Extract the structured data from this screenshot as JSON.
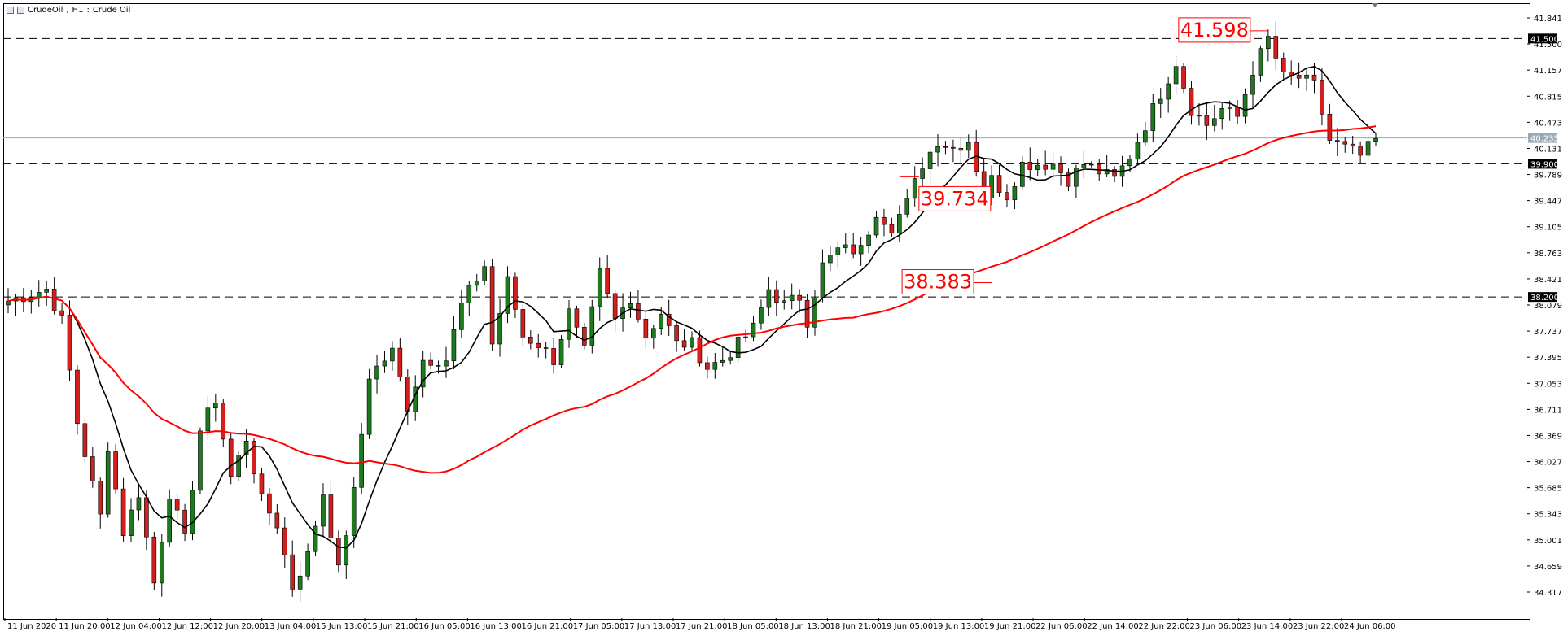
{
  "window": {
    "symbol": "CrudeOil",
    "timeframe": "H1",
    "description": "Crude Oil",
    "title_separator": ",",
    "title_colon": ":"
  },
  "colors": {
    "bull": "#1f7a1f",
    "bear": "#d41f1f",
    "ma_fast": "#000000",
    "ma_slow": "#ff0000",
    "annotation": "#ff0000",
    "level_line": "#000000",
    "current_price_line": "#9aaab8"
  },
  "chart_data": {
    "type": "candlestick",
    "ylim": [
      34.1,
      41.95
    ],
    "y_ticks": [
      "41.841",
      "41.500",
      "41.157",
      "40.815",
      "40.473",
      "40.131",
      "39.789",
      "39.447",
      "39.105",
      "38.763",
      "38.421",
      "38.079",
      "37.737",
      "37.395",
      "37.053",
      "36.711",
      "36.369",
      "36.027",
      "35.685",
      "35.343",
      "35.001",
      "34.659",
      "34.317"
    ],
    "x_labels": [
      "11 Jun 2020",
      "11 Jun 20:00",
      "12 Jun 04:00",
      "12 Jun 12:00",
      "12 Jun 20:00",
      "13 Jun 04:00",
      "15 Jun 13:00",
      "15 Jun 21:00",
      "16 Jun 05:00",
      "16 Jun 13:00",
      "16 Jun 21:00",
      "17 Jun 05:00",
      "17 Jun 13:00",
      "17 Jun 21:00",
      "18 Jun 05:00",
      "18 Jun 13:00",
      "18 Jun 21:00",
      "19 Jun 05:00",
      "19 Jun 13:00",
      "19 Jun 21:00",
      "22 Jun 06:00",
      "22 Jun 14:00",
      "22 Jun 22:00",
      "23 Jun 06:00",
      "23 Jun 14:00",
      "23 Jun 22:00",
      "24 Jun 06:00"
    ],
    "horizontal_levels": [
      {
        "value": 41.5,
        "label": "41.500"
      },
      {
        "value": 39.9,
        "label": "39.900"
      },
      {
        "value": 38.2,
        "label": "38.200"
      }
    ],
    "current_price": {
      "value": 40.23,
      "label": "40.235"
    },
    "annotations": [
      {
        "text": "41.598",
        "value": 41.598
      },
      {
        "text": "39.734",
        "value": 39.734
      },
      {
        "text": "38.383",
        "value": 38.383
      }
    ],
    "waypoints": [
      [
        0,
        38.15
      ],
      [
        5,
        38.3
      ],
      [
        7,
        37.9
      ],
      [
        9,
        36.6
      ],
      [
        12,
        35.4
      ],
      [
        13,
        36.3
      ],
      [
        15,
        35.2
      ],
      [
        17,
        35.7
      ],
      [
        19,
        34.55
      ],
      [
        21,
        35.7
      ],
      [
        23,
        35.1
      ],
      [
        25,
        36.5
      ],
      [
        27,
        36.9
      ],
      [
        29,
        35.9
      ],
      [
        31,
        36.4
      ],
      [
        33,
        35.6
      ],
      [
        35,
        35.3
      ],
      [
        37,
        34.5
      ],
      [
        39,
        34.9
      ],
      [
        41,
        35.7
      ],
      [
        43,
        34.7
      ],
      [
        45,
        35.7
      ],
      [
        47,
        37.2
      ],
      [
        50,
        37.5
      ],
      [
        52,
        36.8
      ],
      [
        54,
        37.4
      ],
      [
        57,
        37.4
      ],
      [
        59,
        38.1
      ],
      [
        62,
        38.6
      ],
      [
        63,
        37.6
      ],
      [
        65,
        38.4
      ],
      [
        67,
        37.7
      ],
      [
        69,
        37.6
      ],
      [
        71,
        37.4
      ],
      [
        73,
        38.0
      ],
      [
        75,
        37.5
      ],
      [
        77,
        38.5
      ],
      [
        79,
        37.9
      ],
      [
        81,
        38.2
      ],
      [
        83,
        37.7
      ],
      [
        85,
        38.0
      ],
      [
        87,
        37.6
      ],
      [
        89,
        37.6
      ],
      [
        91,
        37.3
      ],
      [
        93,
        37.4
      ],
      [
        95,
        37.6
      ],
      [
        97,
        37.8
      ],
      [
        99,
        38.3
      ],
      [
        101,
        38.1
      ],
      [
        103,
        38.2
      ],
      [
        104,
        37.9
      ],
      [
        106,
        38.6
      ],
      [
        108,
        38.8
      ],
      [
        111,
        38.8
      ],
      [
        113,
        39.3
      ],
      [
        115,
        39.1
      ],
      [
        117,
        39.4
      ],
      [
        119,
        39.9
      ],
      [
        121,
        40.2
      ],
      [
        123,
        40.1
      ],
      [
        125,
        40.2
      ],
      [
        127,
        39.5
      ],
      [
        128,
        39.7
      ],
      [
        130,
        39.5
      ],
      [
        132,
        39.9
      ],
      [
        134,
        39.9
      ],
      [
        136,
        39.9
      ],
      [
        138,
        39.7
      ],
      [
        140,
        39.9
      ],
      [
        142,
        39.8
      ],
      [
        144,
        39.7
      ],
      [
        146,
        40.0
      ],
      [
        148,
        40.4
      ],
      [
        150,
        40.8
      ],
      [
        152,
        41.2
      ],
      [
        154,
        40.6
      ],
      [
        156,
        40.4
      ],
      [
        158,
        40.6
      ],
      [
        160,
        40.5
      ],
      [
        162,
        41.1
      ],
      [
        164,
        41.5
      ],
      [
        166,
        41.0
      ],
      [
        168,
        41.0
      ],
      [
        170,
        40.9
      ],
      [
        172,
        40.2
      ],
      [
        174,
        40.1
      ],
      [
        176,
        40.0
      ],
      [
        178,
        40.2
      ]
    ],
    "series": [
      {
        "kind": "ma_fast",
        "period": 9
      },
      {
        "kind": "ma_slow",
        "period": 48
      }
    ]
  }
}
